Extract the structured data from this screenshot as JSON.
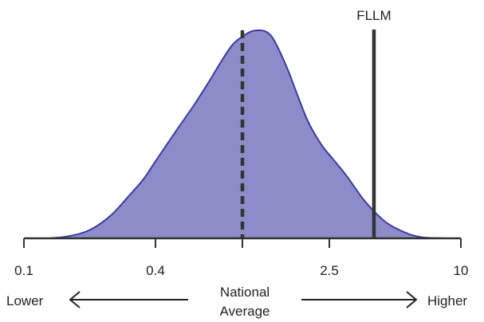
{
  "chart_data": {
    "type": "area",
    "x_scale": "log",
    "x_range": [
      0.1,
      10
    ],
    "x_ticks": [
      {
        "value": 0.1,
        "label": "0.1"
      },
      {
        "value": 0.4,
        "label": "0.4"
      },
      {
        "value": 1,
        "label": ""
      },
      {
        "value": 2.5,
        "label": "2.5"
      },
      {
        "value": 10,
        "label": "10"
      }
    ],
    "y_axis_shown": false,
    "series": [
      {
        "color": "#8c8cc8",
        "stroke": "#3a3aa8",
        "x": [
          0.13,
          0.16,
          0.2,
          0.25,
          0.3,
          0.35,
          0.4,
          0.5,
          0.6,
          0.7,
          0.8,
          0.9,
          1.0,
          1.1,
          1.2,
          1.3,
          1.4,
          1.6,
          1.8,
          2.0,
          2.3,
          2.6,
          3.0,
          3.5,
          4.0,
          4.5,
          5.0,
          5.5,
          6.0,
          6.5,
          7.0,
          8.0,
          9.0
        ],
        "y": [
          0.0,
          0.01,
          0.04,
          0.11,
          0.2,
          0.28,
          0.37,
          0.52,
          0.64,
          0.75,
          0.85,
          0.93,
          0.97,
          0.995,
          1.0,
          0.99,
          0.95,
          0.82,
          0.68,
          0.56,
          0.45,
          0.38,
          0.3,
          0.2,
          0.13,
          0.08,
          0.05,
          0.03,
          0.015,
          0.007,
          0.003,
          0.001,
          0.0
        ]
      }
    ],
    "reference_lines": [
      {
        "x": 1.0,
        "style": "dashed",
        "color": "#333333",
        "label": ""
      },
      {
        "x": 4.0,
        "style": "solid",
        "color": "#333333",
        "label": "FLLM"
      }
    ],
    "annotations": {
      "left_label": "Lower",
      "right_label": "Higher",
      "center_line1": "National",
      "center_line2": "Average"
    }
  }
}
